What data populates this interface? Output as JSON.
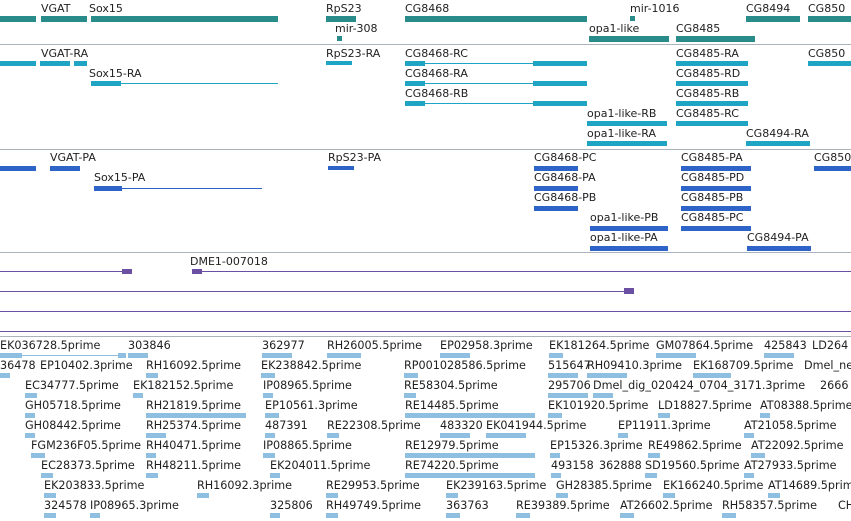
{
  "colors": {
    "gene": "#2a8b8b",
    "transcript": "#1fa4c4",
    "cds": "#2e64c8",
    "repeat": "#6a4fa3",
    "est": "#8fbfe0",
    "divider": "#aab2bc"
  },
  "tracks": {
    "genes": {
      "features": [
        {
          "label": "VGAT"
        },
        {
          "label": "Sox15"
        },
        {
          "label": "RpS23"
        },
        {
          "label": "mir-308"
        },
        {
          "label": "CG8468"
        },
        {
          "label": "mir-1016"
        },
        {
          "label": "opa1-like"
        },
        {
          "label": "CG8485"
        },
        {
          "label": "CG8494"
        },
        {
          "label": "CG850"
        }
      ]
    },
    "transcripts": {
      "features": [
        {
          "label": "VGAT-RA"
        },
        {
          "label": "Sox15-RA"
        },
        {
          "label": "RpS23-RA"
        },
        {
          "label": "CG8468-RC"
        },
        {
          "label": "CG8468-RA"
        },
        {
          "label": "CG8468-RB"
        },
        {
          "label": "CG8485-RA"
        },
        {
          "label": "CG8485-RD"
        },
        {
          "label": "CG8485-RB"
        },
        {
          "label": "CG8485-RC"
        },
        {
          "label": "opa1-like-RB"
        },
        {
          "label": "opa1-like-RA"
        },
        {
          "label": "CG8494-RA"
        },
        {
          "label": "CG850"
        }
      ]
    },
    "proteins": {
      "features": [
        {
          "label": "VGAT-PA"
        },
        {
          "label": "Sox15-PA"
        },
        {
          "label": "RpS23-PA"
        },
        {
          "label": "CG8468-PC"
        },
        {
          "label": "CG8468-PA"
        },
        {
          "label": "CG8468-PB"
        },
        {
          "label": "CG8485-PA"
        },
        {
          "label": "CG8485-PD"
        },
        {
          "label": "CG8485-PB"
        },
        {
          "label": "CG8485-PC"
        },
        {
          "label": "opa1-like-PB"
        },
        {
          "label": "opa1-like-PA"
        },
        {
          "label": "CG8494-PA"
        },
        {
          "label": "CG850"
        }
      ]
    },
    "repeats": {
      "features": [
        {
          "label": "DME1-007018"
        }
      ]
    },
    "ests": {
      "rows": [
        [
          "EK036728.5prime",
          "303846",
          "362977",
          "RH26005.5prime",
          "EP02958.3prime",
          "EK181264.5prime",
          "GM07864.5prime",
          "425843",
          "LD264"
        ],
        [
          "36478",
          "EP10402.3prime",
          "RH16092.5prime",
          "EK238842.5prime",
          "RP001028586.5prime",
          "515647",
          "RH09410.3prime",
          "EK168709.5prime",
          "Dmel_ne"
        ],
        [
          "EC34777.5prime",
          "EK182152.5prime",
          "IP08965.5prime",
          "RE58304.5prime",
          "295706",
          "Dmel_dig_020424_0704_3171.3prime",
          "2666"
        ],
        [
          "GH05718.5prime",
          "RH21819.5prime",
          "EP10561.3prime",
          "RE14485.5prime",
          "EK101920.5prime",
          "LD18827.5prime",
          "AT08388.5prime"
        ],
        [
          "GH08442.5prime",
          "RH25374.5prime",
          "487391",
          "RE22308.5prime",
          "483320",
          "EK041944.5prime",
          "EP11911.3prime",
          "AT21058.5prime"
        ],
        [
          "FGM236F05.5prime",
          "RH40471.5prime",
          "IP08865.5prime",
          "RE12979.5prime",
          "EP15326.3prime",
          "RE49862.5prime",
          "AT22092.5prime"
        ],
        [
          "EC28373.5prime",
          "RH48211.5prime",
          "EK204011.5prime",
          "RE74220.5prime",
          "493158",
          "362888",
          "SD19560.5prime",
          "AT27933.5prime"
        ],
        [
          "EK203833.5prime",
          "RH16092.3prime",
          "RE29953.5prime",
          "EK239163.5prime",
          "GH28385.5prime",
          "EK166240.5prime",
          "AT14689.5prime"
        ],
        [
          "324578",
          "IP08965.3prime",
          "325806",
          "RH49749.5prime",
          "363763",
          "RE39389.5prime",
          "AT26602.5prime",
          "RH58357.5prime",
          "CH"
        ]
      ]
    }
  }
}
